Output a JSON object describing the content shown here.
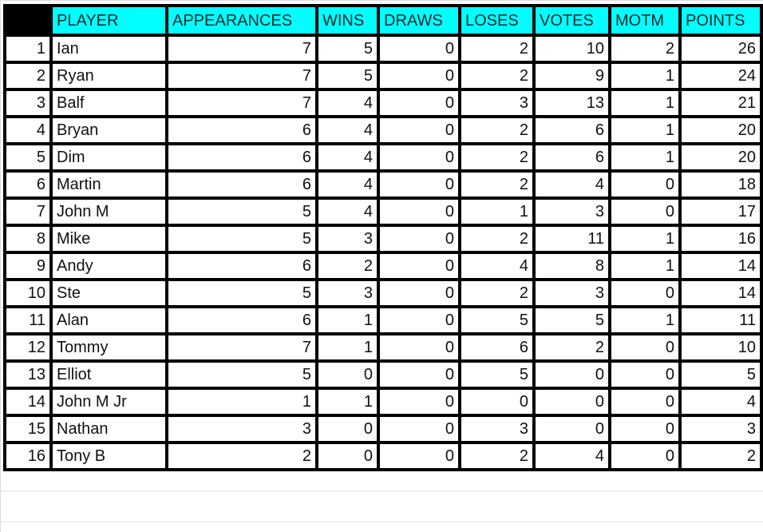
{
  "table": {
    "headers": [
      "",
      "PLAYER",
      "APPEARANCES",
      "WINS",
      "DRAWS",
      "LOSES",
      "VOTES",
      "MOTM",
      "POINTS"
    ],
    "rows": [
      [
        "1",
        "Ian",
        "7",
        "5",
        "0",
        "2",
        "10",
        "2",
        "26"
      ],
      [
        "2",
        "Ryan",
        "7",
        "5",
        "0",
        "2",
        "9",
        "1",
        "24"
      ],
      [
        "3",
        "Balf",
        "7",
        "4",
        "0",
        "3",
        "13",
        "1",
        "21"
      ],
      [
        "4",
        "Bryan",
        "6",
        "4",
        "0",
        "2",
        "6",
        "1",
        "20"
      ],
      [
        "5",
        "Dim",
        "6",
        "4",
        "0",
        "2",
        "6",
        "1",
        "20"
      ],
      [
        "6",
        "Martin",
        "6",
        "4",
        "0",
        "2",
        "4",
        "0",
        "18"
      ],
      [
        "7",
        "John M",
        "5",
        "4",
        "0",
        "1",
        "3",
        "0",
        "17"
      ],
      [
        "8",
        "Mike",
        "5",
        "3",
        "0",
        "2",
        "11",
        "1",
        "16"
      ],
      [
        "9",
        "Andy",
        "6",
        "2",
        "0",
        "4",
        "8",
        "1",
        "14"
      ],
      [
        "10",
        "Ste",
        "5",
        "3",
        "0",
        "2",
        "3",
        "0",
        "14"
      ],
      [
        "11",
        "Alan",
        "6",
        "1",
        "0",
        "5",
        "5",
        "1",
        "11"
      ],
      [
        "12",
        "Tommy",
        "7",
        "1",
        "0",
        "6",
        "2",
        "0",
        "10"
      ],
      [
        "13",
        "Elliot",
        "5",
        "0",
        "0",
        "5",
        "0",
        "0",
        "5"
      ],
      [
        "14",
        "John M Jr",
        "1",
        "1",
        "0",
        "0",
        "0",
        "0",
        "4"
      ],
      [
        "15",
        "Nathan",
        "3",
        "0",
        "0",
        "3",
        "0",
        "0",
        "3"
      ],
      [
        "16",
        "Tony B",
        "2",
        "0",
        "0",
        "2",
        "4",
        "0",
        "2"
      ]
    ]
  },
  "colors": {
    "header_bg": "#00ffff",
    "border": "#000000"
  }
}
